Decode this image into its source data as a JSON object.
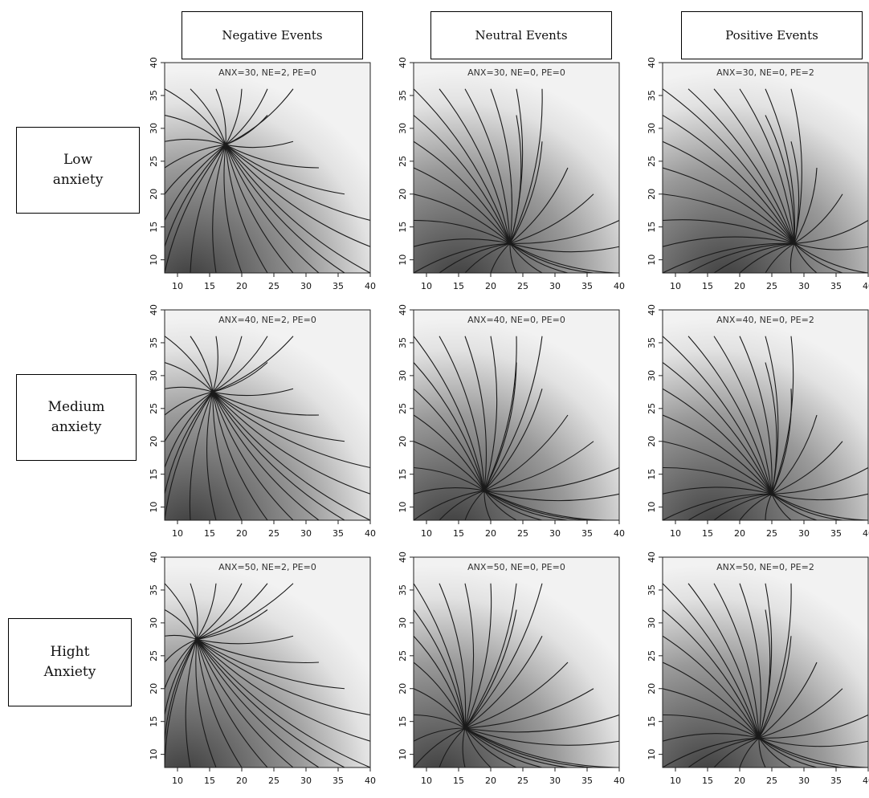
{
  "column_headers": [
    "Negative Events",
    "Neutral Events",
    "Positive Events"
  ],
  "row_headers": [
    "Low\nanxiety",
    "Medium\nanxiety",
    "Hight\nAnxiety"
  ],
  "chart_data": {
    "type": "vector-field-panels",
    "xlim": [
      8,
      40
    ],
    "ylim": [
      8,
      40
    ],
    "xticks": [
      10,
      15,
      20,
      25,
      30,
      35,
      40
    ],
    "yticks": [
      10,
      15,
      20,
      25,
      30,
      35,
      40
    ],
    "colors": {
      "trajectory": "#1a1a1a",
      "background_light": "#f2f2f2",
      "background_dark": "#3a3a3a"
    },
    "start_points": [
      [
        8,
        8
      ],
      [
        8,
        12
      ],
      [
        8,
        16
      ],
      [
        8,
        20
      ],
      [
        8,
        24
      ],
      [
        8,
        28
      ],
      [
        8,
        32
      ],
      [
        8,
        36
      ],
      [
        12,
        36
      ],
      [
        16,
        36
      ],
      [
        20,
        36
      ],
      [
        24,
        36
      ],
      [
        28,
        36
      ],
      [
        12,
        8
      ],
      [
        16,
        8
      ],
      [
        20,
        8
      ],
      [
        24,
        8
      ],
      [
        28,
        8
      ],
      [
        32,
        8
      ],
      [
        36,
        8
      ],
      [
        40,
        8
      ],
      [
        40,
        12
      ],
      [
        40,
        16
      ],
      [
        36,
        20
      ],
      [
        32,
        24
      ],
      [
        28,
        28
      ],
      [
        24,
        32
      ]
    ],
    "panels": [
      {
        "title": "ANX=30, NE=2, PE=0",
        "attractor": [
          17.5,
          27.5
        ],
        "dark_center": [
          12,
          6
        ]
      },
      {
        "title": "ANX=30, NE=0, PE=0",
        "attractor": [
          23,
          12.5
        ],
        "dark_center": [
          15,
          6
        ]
      },
      {
        "title": "ANX=30, NE=0, PE=2",
        "attractor": [
          28.5,
          12.5
        ],
        "dark_center": [
          18,
          6
        ]
      },
      {
        "title": "ANX=40, NE=2, PE=0",
        "attractor": [
          15.5,
          27.5
        ],
        "dark_center": [
          12,
          6
        ]
      },
      {
        "title": "ANX=40, NE=0, PE=0",
        "attractor": [
          19,
          12.5
        ],
        "dark_center": [
          14,
          6
        ]
      },
      {
        "title": "ANX=40, NE=0, PE=2",
        "attractor": [
          25,
          12
        ],
        "dark_center": [
          16,
          6
        ]
      },
      {
        "title": "ANX=50, NE=2, PE=0",
        "attractor": [
          13,
          27.5
        ],
        "dark_center": [
          11,
          6
        ]
      },
      {
        "title": "ANX=50, NE=0, PE=0",
        "attractor": [
          16,
          14
        ],
        "dark_center": [
          12,
          6
        ]
      },
      {
        "title": "ANX=50, NE=0, PE=2",
        "attractor": [
          23,
          12.5
        ],
        "dark_center": [
          15,
          6
        ]
      }
    ]
  }
}
